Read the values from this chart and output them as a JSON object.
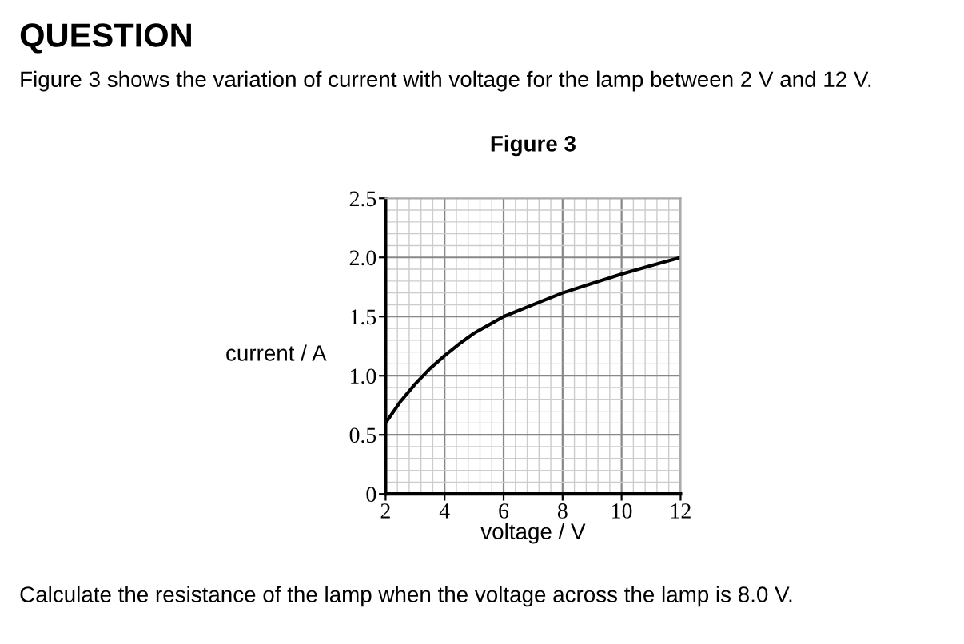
{
  "chart_data": {
    "type": "line",
    "title": "QUESTION",
    "subtitle": "Figure 3 shows the variation of current with voltage for the lamp between 2 V and 12 V.",
    "annotations": [
      "Figure 3",
      "Calculate the resistance of the lamp when the voltage across the lamp is 8.0 V."
    ],
    "xlabel": "voltage / V",
    "ylabel": "current / A",
    "x": [
      2,
      2.5,
      3,
      3.5,
      4,
      4.5,
      5,
      5.5,
      6,
      7,
      8,
      9,
      10,
      11,
      12
    ],
    "series": [
      {
        "color": "#000000",
        "values": [
          0.6,
          0.78,
          0.93,
          1.06,
          1.17,
          1.27,
          1.36,
          1.43,
          1.5,
          1.6,
          1.7,
          1.78,
          1.86,
          1.93,
          2.0
        ]
      }
    ],
    "xlim": [
      2,
      12
    ],
    "ylim": [
      0,
      2.5
    ],
    "xticks": [
      2,
      4,
      6,
      8,
      10,
      12
    ],
    "yticks": [
      0,
      {
        "value": 0.5,
        "label": "0.5"
      },
      {
        "value": 1.0,
        "label": "1.0"
      },
      {
        "value": 1.5,
        "label": "1.5"
      },
      {
        "value": 2.0,
        "label": "2.0"
      },
      {
        "value": 2.5,
        "label": "2.5"
      }
    ],
    "grid": true,
    "line_style": "solid"
  }
}
